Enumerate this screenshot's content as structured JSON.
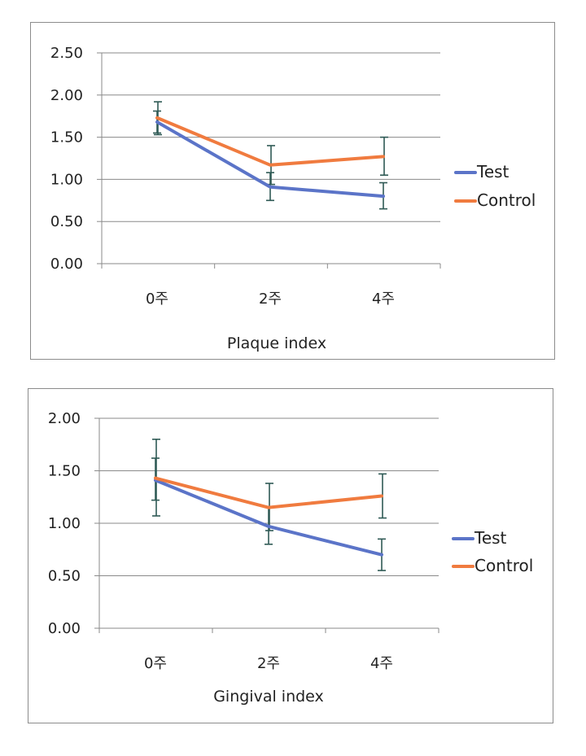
{
  "chart_data": [
    {
      "type": "line",
      "xlabel": "Plaque index",
      "ylabel": "",
      "categories": [
        "0주",
        "2주",
        "4주"
      ],
      "ylim": [
        0,
        2.5
      ],
      "yticks": [
        "0.00",
        "0.50",
        "1.00",
        "1.50",
        "2.00",
        "2.50"
      ],
      "grid": true,
      "legend_position": "right",
      "series": [
        {
          "name": "Test",
          "color": "#5b74c8",
          "values": [
            1.68,
            0.91,
            0.8
          ],
          "err_low": [
            1.55,
            0.75,
            0.65
          ],
          "err_high": [
            1.81,
            1.08,
            0.96
          ]
        },
        {
          "name": "Control",
          "color": "#f07b3f",
          "values": [
            1.73,
            1.17,
            1.27
          ],
          "err_low": [
            1.53,
            0.94,
            1.05
          ],
          "err_high": [
            1.92,
            1.4,
            1.5
          ]
        }
      ]
    },
    {
      "type": "line",
      "xlabel": "Gingival index",
      "ylabel": "",
      "categories": [
        "0주",
        "2주",
        "4주"
      ],
      "ylim": [
        0,
        2.0
      ],
      "yticks": [
        "0.00",
        "0.50",
        "1.00",
        "1.50",
        "2.00"
      ],
      "grid": true,
      "legend_position": "right",
      "series": [
        {
          "name": "Test",
          "color": "#5b74c8",
          "values": [
            1.41,
            0.97,
            0.7
          ],
          "err_low": [
            1.22,
            0.8,
            0.55
          ],
          "err_high": [
            1.62,
            1.15,
            0.85
          ]
        },
        {
          "name": "Control",
          "color": "#f07b3f",
          "values": [
            1.43,
            1.15,
            1.26
          ],
          "err_low": [
            1.07,
            0.93,
            1.05
          ],
          "err_high": [
            1.8,
            1.38,
            1.47
          ]
        }
      ]
    }
  ]
}
